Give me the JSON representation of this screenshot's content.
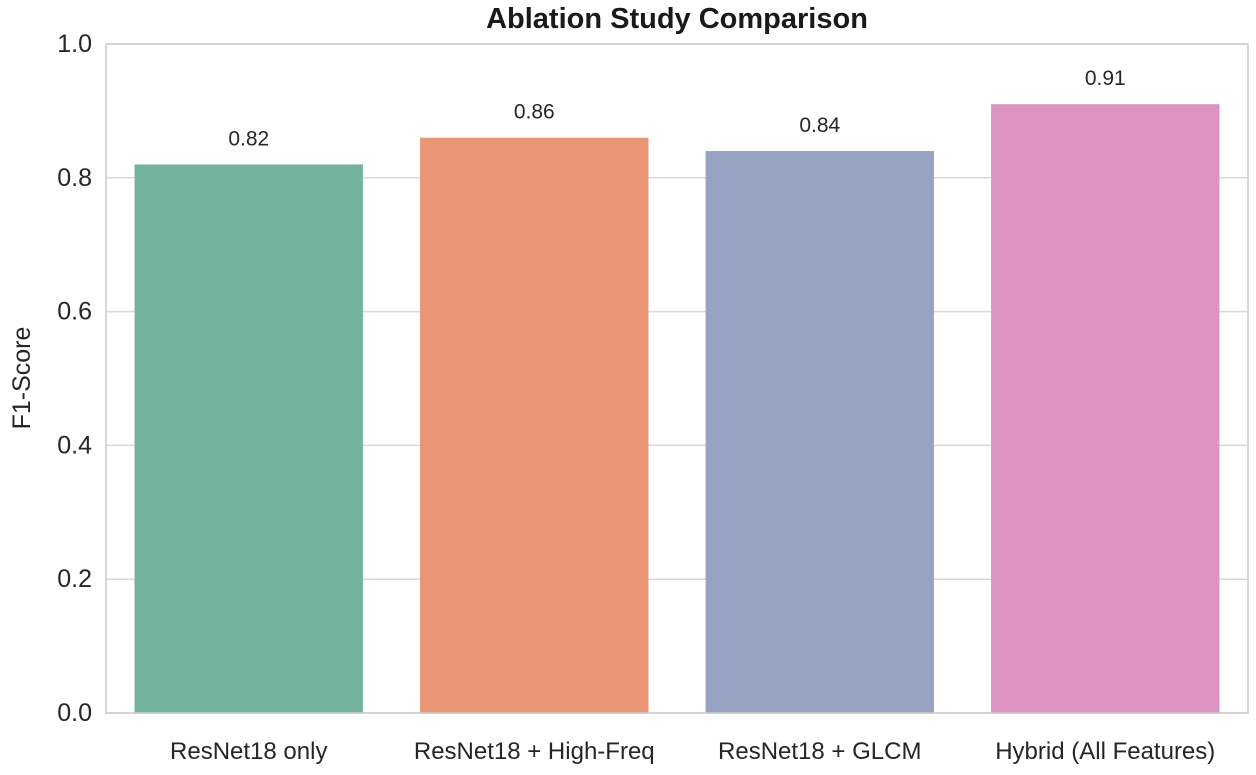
{
  "chart_data": {
    "type": "bar",
    "title": "Ablation Study Comparison",
    "xlabel": "",
    "ylabel": "F1-Score",
    "ylim": [
      0,
      1.0
    ],
    "yticks": [
      0.0,
      0.2,
      0.4,
      0.6,
      0.8,
      1.0
    ],
    "ytick_labels": [
      "0.0",
      "0.2",
      "0.4",
      "0.6",
      "0.8",
      "1.0"
    ],
    "grid": true,
    "categories": [
      "ResNet18 only",
      "ResNet18 + High-Freq",
      "ResNet18 + GLCM",
      "Hybrid (All Features)"
    ],
    "values": [
      0.82,
      0.86,
      0.84,
      0.91
    ],
    "value_labels": [
      "0.82",
      "0.86",
      "0.84",
      "0.91"
    ],
    "colors": [
      "#74b49f",
      "#e89676",
      "#96a3c3",
      "#dd93bf"
    ]
  }
}
